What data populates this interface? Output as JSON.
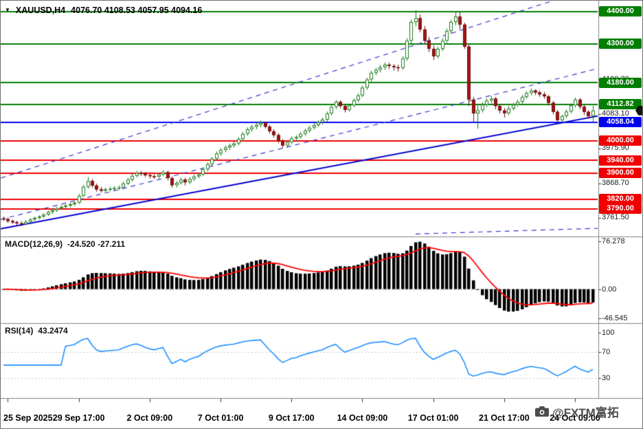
{
  "title": {
    "dropdown_icon": "▼",
    "symbol_period": "XAUUSD,H4",
    "ohlc": "4076.70 4108.53 4057.95 4094.16"
  },
  "watermark": {
    "text": "@FXTM富拓",
    "icon": "camera-icon",
    "color": "#4d4d4d"
  },
  "panel_border_color": "#808080",
  "chart_data": [
    {
      "type": "candlestick",
      "title": "XAUUSD,H4",
      "timeframe": "H4",
      "bar_count": 134,
      "ylim": [
        3706.3,
        4431.9
      ],
      "x_axis": {
        "labels": [
          "25 Sep 2025",
          "29 Sep 17:00",
          "2 Oct 09:00",
          "7 Oct 01:00",
          "9 Oct 17:00",
          "14 Oct 09:00",
          "17 Oct 01:00",
          "21 Oct 17:00",
          "24 Oct 09:00"
        ],
        "bar_indices": [
          1,
          17,
          33,
          49,
          65,
          81,
          97,
          113,
          129
        ]
      },
      "scale_ticks": [
        {
          "label": "4190.30",
          "value": 4190.3
        },
        {
          "label": "4083.10",
          "value": 4083.1
        },
        {
          "label": "3975.90",
          "value": 3975.9
        },
        {
          "label": "3868.70",
          "value": 3868.7
        },
        {
          "label": "3761.50",
          "value": 3761.5
        }
      ],
      "levels": [
        {
          "label": "4400.00",
          "value": 4400.0,
          "color": "#007e00"
        },
        {
          "label": "4300.00",
          "value": 4300.0,
          "color": "#007e00"
        },
        {
          "label": "4180.00",
          "value": 4180.0,
          "color": "#007e00"
        },
        {
          "label": "4112.82",
          "value": 4112.82,
          "color": "#007e00"
        },
        {
          "label": "4058.04",
          "value": 4058.04,
          "color": "#0000f0"
        },
        {
          "label": "4000.00",
          "value": 4000.0,
          "color": "#f00000"
        },
        {
          "label": "3940.00",
          "value": 3940.0,
          "color": "#f00000"
        },
        {
          "label": "3900.00",
          "value": 3900.0,
          "color": "#f00000"
        },
        {
          "label": "3820.00",
          "value": 3820.0,
          "color": "#f00000"
        },
        {
          "label": "3790.00",
          "value": 3790.0,
          "color": "#f00000"
        }
      ],
      "current_price": {
        "value": 4094.16,
        "color": "#111111"
      },
      "trendlines": [
        {
          "style": "solid",
          "color": "#0000cd",
          "width": 2,
          "x1_bar": -0.6,
          "p1": 3728,
          "x2_bar": 144.5,
          "p2": 4104
        },
        {
          "style": "dashed",
          "color": "#3434cc",
          "width": 1.2,
          "x1_bar": -0.6,
          "p1": 3885,
          "x2_bar": 124,
          "p2": 4434
        },
        {
          "style": "dashed",
          "color": "#3434cc",
          "width": 1.2,
          "x1_bar": -0.6,
          "p1": 3757,
          "x2_bar": 144.5,
          "p2": 4260
        },
        {
          "style": "dashed",
          "color": "#3434cc",
          "width": 1.2,
          "x1_bar": 93,
          "p1": 3712,
          "x2_bar": 144.5,
          "p2": 3734
        }
      ],
      "colors": {
        "bull_fill": "#ffffff",
        "bull_border": "#187818",
        "bear_fill": "#a31515",
        "bear_border": "#701010"
      },
      "candles": [
        [
          3760,
          3766,
          3752,
          3758
        ],
        [
          3758,
          3763,
          3746,
          3752
        ],
        [
          3752,
          3757,
          3743,
          3748
        ],
        [
          3748,
          3753,
          3738,
          3745
        ],
        [
          3745,
          3752,
          3736,
          3743
        ],
        [
          3743,
          3755,
          3740,
          3750
        ],
        [
          3750,
          3761,
          3746,
          3757
        ],
        [
          3757,
          3766,
          3752,
          3762
        ],
        [
          3762,
          3770,
          3757,
          3766
        ],
        [
          3766,
          3776,
          3761,
          3772
        ],
        [
          3772,
          3784,
          3768,
          3780
        ],
        [
          3780,
          3790,
          3774,
          3785
        ],
        [
          3785,
          3796,
          3780,
          3791
        ],
        [
          3791,
          3801,
          3786,
          3796
        ],
        [
          3796,
          3805,
          3790,
          3800
        ],
        [
          3800,
          3809,
          3794,
          3804
        ],
        [
          3804,
          3814,
          3799,
          3809
        ],
        [
          3809,
          3836,
          3805,
          3830
        ],
        [
          3830,
          3864,
          3826,
          3858
        ],
        [
          3858,
          3888,
          3852,
          3876
        ],
        [
          3876,
          3882,
          3855,
          3862
        ],
        [
          3862,
          3868,
          3843,
          3850
        ],
        [
          3850,
          3858,
          3840,
          3846
        ],
        [
          3846,
          3856,
          3841,
          3850
        ],
        [
          3850,
          3858,
          3844,
          3852
        ],
        [
          3852,
          3860,
          3846,
          3854
        ],
        [
          3854,
          3862,
          3848,
          3856
        ],
        [
          3856,
          3874,
          3851,
          3868
        ],
        [
          3868,
          3886,
          3863,
          3880
        ],
        [
          3880,
          3898,
          3874,
          3892
        ],
        [
          3892,
          3908,
          3887,
          3901
        ],
        [
          3901,
          3907,
          3891,
          3898
        ],
        [
          3898,
          3904,
          3888,
          3894
        ],
        [
          3894,
          3900,
          3884,
          3891
        ],
        [
          3891,
          3897,
          3882,
          3889
        ],
        [
          3889,
          3901,
          3884,
          3896
        ],
        [
          3896,
          3910,
          3891,
          3903
        ],
        [
          3903,
          3908,
          3878,
          3885
        ],
        [
          3885,
          3890,
          3855,
          3863
        ],
        [
          3863,
          3876,
          3856,
          3870
        ],
        [
          3870,
          3887,
          3865,
          3880
        ],
        [
          3880,
          3886,
          3862,
          3872
        ],
        [
          3872,
          3888,
          3866,
          3882
        ],
        [
          3882,
          3896,
          3876,
          3890
        ],
        [
          3890,
          3902,
          3884,
          3896
        ],
        [
          3896,
          3918,
          3891,
          3912
        ],
        [
          3912,
          3934,
          3906,
          3928
        ],
        [
          3928,
          3951,
          3922,
          3945
        ],
        [
          3945,
          3967,
          3939,
          3961
        ],
        [
          3961,
          3978,
          3954,
          3972
        ],
        [
          3972,
          3986,
          3965,
          3980
        ],
        [
          3980,
          3992,
          3972,
          3986
        ],
        [
          3986,
          3999,
          3979,
          3992
        ],
        [
          3992,
          4012,
          3986,
          4006
        ],
        [
          4006,
          4028,
          4000,
          4022
        ],
        [
          4022,
          4042,
          4016,
          4036
        ],
        [
          4036,
          4050,
          4028,
          4044
        ],
        [
          4044,
          4057,
          4036,
          4050
        ],
        [
          4050,
          4063,
          4042,
          4056
        ],
        [
          4056,
          4060,
          4038,
          4044
        ],
        [
          4044,
          4050,
          4023,
          4030
        ],
        [
          4030,
          4036,
          4010,
          4018
        ],
        [
          4018,
          4024,
          3993,
          4000
        ],
        [
          4000,
          4006,
          3978,
          3986
        ],
        [
          3986,
          4002,
          3980,
          3996
        ],
        [
          3996,
          4014,
          3990,
          4008
        ],
        [
          4008,
          4018,
          4000,
          4012
        ],
        [
          4012,
          4028,
          4006,
          4022
        ],
        [
          4022,
          4038,
          4016,
          4032
        ],
        [
          4032,
          4047,
          4026,
          4041
        ],
        [
          4041,
          4055,
          4035,
          4049
        ],
        [
          4049,
          4064,
          4043,
          4058
        ],
        [
          4058,
          4072,
          4051,
          4066
        ],
        [
          4066,
          4091,
          4060,
          4085
        ],
        [
          4085,
          4111,
          4079,
          4105
        ],
        [
          4105,
          4127,
          4098,
          4121
        ],
        [
          4121,
          4126,
          4101,
          4108
        ],
        [
          4108,
          4114,
          4088,
          4096
        ],
        [
          4096,
          4116,
          4090,
          4110
        ],
        [
          4110,
          4132,
          4104,
          4126
        ],
        [
          4126,
          4147,
          4120,
          4141
        ],
        [
          4141,
          4171,
          4135,
          4165
        ],
        [
          4165,
          4196,
          4158,
          4190
        ],
        [
          4190,
          4217,
          4183,
          4211
        ],
        [
          4211,
          4227,
          4203,
          4220
        ],
        [
          4220,
          4235,
          4212,
          4228
        ],
        [
          4228,
          4243,
          4220,
          4236
        ],
        [
          4236,
          4242,
          4222,
          4232
        ],
        [
          4232,
          4238,
          4218,
          4228
        ],
        [
          4228,
          4236,
          4215,
          4226
        ],
        [
          4226,
          4262,
          4220,
          4255
        ],
        [
          4255,
          4318,
          4248,
          4310
        ],
        [
          4310,
          4376,
          4302,
          4368
        ],
        [
          4368,
          4405,
          4355,
          4380
        ],
        [
          4380,
          4392,
          4336,
          4345
        ],
        [
          4345,
          4356,
          4298,
          4310
        ],
        [
          4310,
          4322,
          4275,
          4285
        ],
        [
          4285,
          4295,
          4250,
          4262
        ],
        [
          4262,
          4292,
          4255,
          4285
        ],
        [
          4285,
          4318,
          4278,
          4310
        ],
        [
          4310,
          4348,
          4303,
          4340
        ],
        [
          4340,
          4375,
          4332,
          4368
        ],
        [
          4368,
          4402,
          4358,
          4385
        ],
        [
          4385,
          4398,
          4345,
          4360
        ],
        [
          4360,
          4366,
          4285,
          4292
        ],
        [
          4292,
          4298,
          4108,
          4128
        ],
        [
          4128,
          4136,
          4060,
          4085
        ],
        [
          4085,
          4112,
          4038,
          4095
        ],
        [
          4095,
          4120,
          4088,
          4112
        ],
        [
          4112,
          4132,
          4104,
          4125
        ],
        [
          4125,
          4140,
          4116,
          4131
        ],
        [
          4131,
          4136,
          4098,
          4108
        ],
        [
          4108,
          4115,
          4085,
          4094
        ],
        [
          4094,
          4102,
          4072,
          4086
        ],
        [
          4086,
          4108,
          4080,
          4100
        ],
        [
          4100,
          4118,
          4094,
          4112
        ],
        [
          4112,
          4128,
          4106,
          4121
        ],
        [
          4121,
          4142,
          4115,
          4136
        ],
        [
          4136,
          4154,
          4130,
          4148
        ],
        [
          4148,
          4163,
          4141,
          4156
        ],
        [
          4156,
          4160,
          4142,
          4150
        ],
        [
          4150,
          4156,
          4136,
          4144
        ],
        [
          4144,
          4152,
          4130,
          4138
        ],
        [
          4138,
          4142,
          4110,
          4118
        ],
        [
          4118,
          4124,
          4082,
          4090
        ],
        [
          4090,
          4096,
          4052,
          4064
        ],
        [
          4064,
          4082,
          4058,
          4077
        ],
        [
          4077,
          4097,
          4070,
          4091
        ],
        [
          4091,
          4116,
          4085,
          4110
        ],
        [
          4110,
          4134,
          4103,
          4128
        ],
        [
          4128,
          4133,
          4098,
          4106
        ],
        [
          4106,
          4112,
          4080,
          4090
        ],
        [
          4090,
          4095,
          4068,
          4076.7
        ],
        [
          4076.7,
          4108.53,
          4057.95,
          4094.16
        ]
      ]
    },
    {
      "type": "bar",
      "name": "MACD",
      "label": "MACD(12,26,9)",
      "params": [
        12,
        26,
        9
      ],
      "values_text": "-24.520 -27.211",
      "ylim": [
        -46.545,
        76.278
      ],
      "axis_ticks": [
        {
          "label": "76.278",
          "value": 76.278
        },
        {
          "label": "0.00",
          "value": 0
        },
        {
          "label": "-46.545",
          "value": -46.545
        }
      ],
      "colors": {
        "histogram": "#000000",
        "signal": "#ff0000"
      },
      "derived": "histogram = EMA12(close) - EMA26(close); signal = EMA9(histogram); computed from candle closes"
    },
    {
      "type": "line",
      "name": "RSI",
      "label": "RSI(14)",
      "params": [
        14
      ],
      "value_text": "43.2474",
      "ylim": [
        0,
        100
      ],
      "axis_ticks": [
        {
          "label": "100",
          "value": 100
        },
        {
          "label": "70",
          "value": 70
        },
        {
          "label": "30",
          "value": 30
        }
      ],
      "levels": [
        70,
        30
      ],
      "colors": {
        "line": "#1e90ff"
      },
      "derived": "Wilder RSI(14) of candle closes"
    }
  ]
}
